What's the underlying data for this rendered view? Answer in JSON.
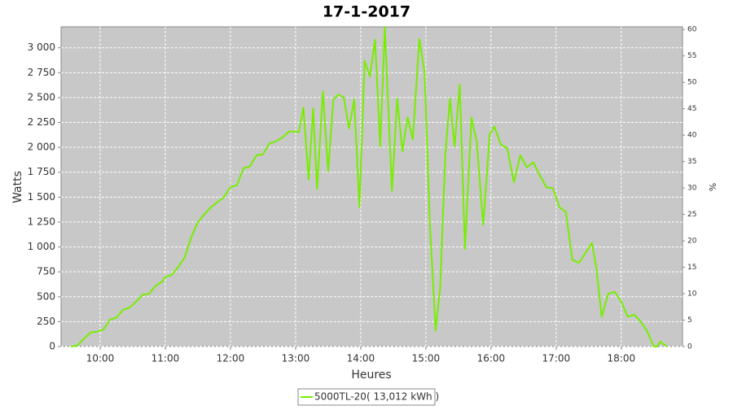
{
  "chart_data": {
    "type": "line",
    "title": "17-1-2017",
    "x_label": "Heures",
    "y_label": "Watts",
    "y2_label": "%",
    "x": [
      9.55,
      9.65,
      9.75,
      9.85,
      9.95,
      10.05,
      10.15,
      10.25,
      10.35,
      10.45,
      10.55,
      10.65,
      10.75,
      10.85,
      10.95,
      11.0,
      11.1,
      11.2,
      11.3,
      11.4,
      11.5,
      11.6,
      11.7,
      11.8,
      11.9,
      12.0,
      12.1,
      12.2,
      12.3,
      12.4,
      12.5,
      12.6,
      12.7,
      12.8,
      12.9,
      13.0,
      13.05,
      13.12,
      13.2,
      13.27,
      13.33,
      13.42,
      13.5,
      13.58,
      13.66,
      13.74,
      13.82,
      13.9,
      13.98,
      14.06,
      14.14,
      14.22,
      14.3,
      14.37,
      14.44,
      14.48,
      14.56,
      14.64,
      14.72,
      14.8,
      14.9,
      14.98,
      15.06,
      15.15,
      15.22,
      15.3,
      15.37,
      15.44,
      15.52,
      15.6,
      15.7,
      15.78,
      15.88,
      15.98,
      16.05,
      16.15,
      16.25,
      16.35,
      16.45,
      16.55,
      16.65,
      16.75,
      16.85,
      16.95,
      17.05,
      17.15,
      17.25,
      17.35,
      17.45,
      17.55,
      17.62,
      17.7,
      17.8,
      17.9,
      18.0,
      18.1,
      18.2,
      18.3,
      18.4,
      18.5,
      18.55,
      18.6,
      18.7
    ],
    "series": [
      {
        "name": "5000TL-20( 13,012 kWh )",
        "color": "#77ee00",
        "values": [
          0,
          10,
          80,
          140,
          150,
          170,
          270,
          290,
          370,
          390,
          450,
          520,
          530,
          610,
          650,
          700,
          720,
          800,
          900,
          1100,
          1250,
          1330,
          1400,
          1450,
          1500,
          1600,
          1620,
          1790,
          1810,
          1920,
          1930,
          2040,
          2060,
          2100,
          2160,
          2160,
          2150,
          2400,
          1680,
          2390,
          1580,
          2560,
          1760,
          2480,
          2530,
          2500,
          2190,
          2480,
          1400,
          2870,
          2710,
          3080,
          2010,
          3210,
          2150,
          1560,
          2490,
          1960,
          2300,
          2080,
          3090,
          2750,
          1250,
          160,
          600,
          1950,
          2490,
          2010,
          2630,
          980,
          2300,
          2060,
          1220,
          2130,
          2210,
          2030,
          1990,
          1650,
          1920,
          1800,
          1850,
          1720,
          1600,
          1590,
          1400,
          1350,
          870,
          840,
          940,
          1040,
          780,
          300,
          530,
          550,
          450,
          300,
          320,
          250,
          150,
          0,
          0,
          50,
          0
        ]
      }
    ],
    "xlim": [
      9.4,
      18.94
    ],
    "xticks": [
      {
        "value": 10,
        "label": "10:00"
      },
      {
        "value": 11,
        "label": "11:00"
      },
      {
        "value": 12,
        "label": "12:00"
      },
      {
        "value": 13,
        "label": "13:00"
      },
      {
        "value": 14,
        "label": "14:00"
      },
      {
        "value": 15,
        "label": "15:00"
      },
      {
        "value": 16,
        "label": "16:00"
      },
      {
        "value": 17,
        "label": "17:00"
      },
      {
        "value": 18,
        "label": "18:00"
      }
    ],
    "ylim": [
      0,
      3210
    ],
    "yticks": [
      0,
      250,
      500,
      750,
      {
        "value": 1000,
        "label": "1 000"
      },
      {
        "value": 1250,
        "label": "1 250"
      },
      {
        "value": 1500,
        "label": "1 500"
      },
      {
        "value": 1750,
        "label": "1 750"
      },
      {
        "value": 2000,
        "label": "2 000"
      },
      {
        "value": 2250,
        "label": "2 250"
      },
      {
        "value": 2500,
        "label": "2 500"
      },
      {
        "value": 2750,
        "label": "2 750"
      },
      {
        "value": 3000,
        "label": "3 000"
      }
    ],
    "y2lim": [
      0,
      60.5
    ],
    "y2ticks": [
      0,
      5,
      10,
      15,
      20,
      25,
      30,
      35,
      40,
      45,
      50,
      55,
      60
    ],
    "grid": true,
    "legend": "bottom"
  }
}
